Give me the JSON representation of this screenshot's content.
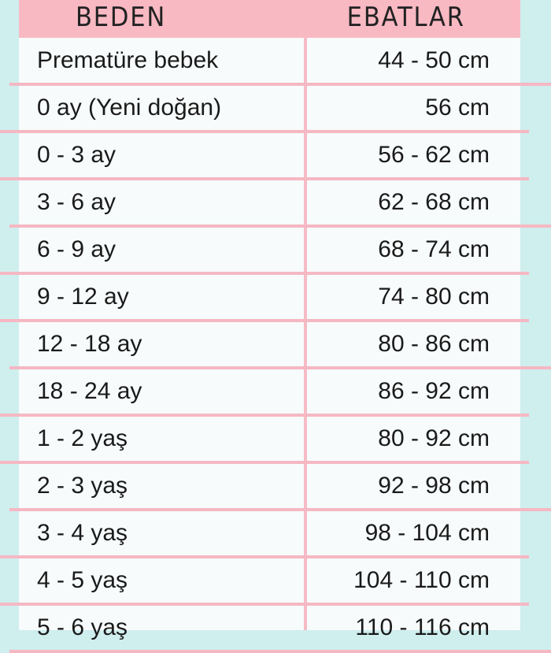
{
  "colors": {
    "background": "#cfeeee",
    "header": "#f8b9c3",
    "separator": "#f5b8c3"
  },
  "header": {
    "size": "BEDEN",
    "measurement": "EBATLAR"
  },
  "rows": [
    {
      "size": "Prematüre bebek",
      "measurement": "44 - 50 cm"
    },
    {
      "size": "0 ay (Yeni doğan)",
      "measurement": "56 cm"
    },
    {
      "size": "0 - 3 ay",
      "measurement": "56 - 62 cm"
    },
    {
      "size": "3 - 6 ay",
      "measurement": "62 - 68 cm"
    },
    {
      "size": "6 - 9 ay",
      "measurement": "68 - 74 cm"
    },
    {
      "size": "9 - 12 ay",
      "measurement": "74 - 80 cm"
    },
    {
      "size": "12 - 18 ay",
      "measurement": "80 - 86 cm"
    },
    {
      "size": "18 - 24 ay",
      "measurement": "86 - 92 cm"
    },
    {
      "size": "1 - 2 yaş",
      "measurement": "80 - 92 cm"
    },
    {
      "size": "2 - 3 yaş",
      "measurement": "92 - 98 cm"
    },
    {
      "size": "3 - 4 yaş",
      "measurement": "98 - 104 cm"
    },
    {
      "size": "4 - 5 yaş",
      "measurement": "104 - 110 cm"
    },
    {
      "size": "5 - 6 yaş",
      "measurement": "110 - 116 cm"
    }
  ]
}
